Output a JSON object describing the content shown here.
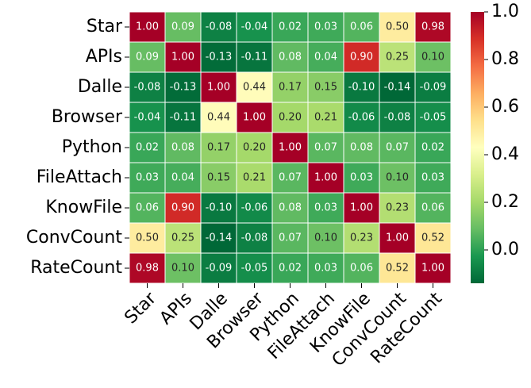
{
  "chart_data": {
    "type": "heatmap",
    "rows": [
      "Star",
      "APIs",
      "Dalle",
      "Browser",
      "Python",
      "FileAttach",
      "KnowFile",
      "ConvCount",
      "RateCount"
    ],
    "columns": [
      "Star",
      "APIs",
      "Dalle",
      "Browser",
      "Python",
      "FileAttach",
      "KnowFile",
      "ConvCount",
      "RateCount"
    ],
    "values": [
      [
        1.0,
        0.09,
        -0.08,
        -0.04,
        0.02,
        0.03,
        0.06,
        0.5,
        0.98
      ],
      [
        0.09,
        1.0,
        -0.13,
        -0.11,
        0.08,
        0.04,
        0.9,
        0.25,
        0.1
      ],
      [
        -0.08,
        -0.13,
        1.0,
        0.44,
        0.17,
        0.15,
        -0.1,
        -0.14,
        -0.09
      ],
      [
        -0.04,
        -0.11,
        0.44,
        1.0,
        0.2,
        0.21,
        -0.06,
        -0.08,
        -0.05
      ],
      [
        0.02,
        0.08,
        0.17,
        0.2,
        1.0,
        0.07,
        0.08,
        0.07,
        0.02
      ],
      [
        0.03,
        0.04,
        0.15,
        0.21,
        0.07,
        1.0,
        0.03,
        0.1,
        0.03
      ],
      [
        0.06,
        0.9,
        -0.1,
        -0.06,
        0.08,
        0.03,
        1.0,
        0.23,
        0.06
      ],
      [
        0.5,
        0.25,
        -0.14,
        -0.08,
        0.07,
        0.1,
        0.23,
        1.0,
        0.52
      ],
      [
        0.98,
        0.1,
        -0.09,
        -0.05,
        0.02,
        0.03,
        0.06,
        0.52,
        1.0
      ]
    ],
    "value_labels": [
      [
        "1.00",
        "0.09",
        "-0.08",
        "-0.04",
        "0.02",
        "0.03",
        "0.06",
        "0.50",
        "0.98"
      ],
      [
        "0.09",
        "1.00",
        "-0.13",
        "-0.11",
        "0.08",
        "0.04",
        "0.90",
        "0.25",
        "0.10"
      ],
      [
        "-0.08",
        "-0.13",
        "1.00",
        "0.44",
        "0.17",
        "0.15",
        "-0.10",
        "-0.14",
        "-0.09"
      ],
      [
        "-0.04",
        "-0.11",
        "0.44",
        "1.00",
        "0.20",
        "0.21",
        "-0.06",
        "-0.08",
        "-0.05"
      ],
      [
        "0.02",
        "0.08",
        "0.17",
        "0.20",
        "1.00",
        "0.07",
        "0.08",
        "0.07",
        "0.02"
      ],
      [
        "0.03",
        "0.04",
        "0.15",
        "0.21",
        "0.07",
        "1.00",
        "0.03",
        "0.10",
        "0.03"
      ],
      [
        "0.06",
        "0.90",
        "-0.10",
        "-0.06",
        "0.08",
        "0.03",
        "1.00",
        "0.23",
        "0.06"
      ],
      [
        "0.50",
        "0.25",
        "-0.14",
        "-0.08",
        "0.07",
        "0.10",
        "0.23",
        "1.00",
        "0.52"
      ],
      [
        "0.98",
        "0.10",
        "-0.09",
        "-0.05",
        "0.02",
        "0.03",
        "0.06",
        "0.52",
        "1.00"
      ]
    ],
    "colormap": "RdYlGn_r",
    "colorbar_lim": [
      -0.14,
      1.0
    ],
    "colorbar_ticks": [
      {
        "value": 0,
        "label": "0.0"
      },
      {
        "value": 0.2,
        "label": "0.2"
      },
      {
        "value": 0.4,
        "label": "0.4"
      },
      {
        "value": 0.6,
        "label": "0.6"
      },
      {
        "value": 0.8,
        "label": "0.8"
      },
      {
        "value": 1.0,
        "label": "1.0"
      }
    ]
  }
}
